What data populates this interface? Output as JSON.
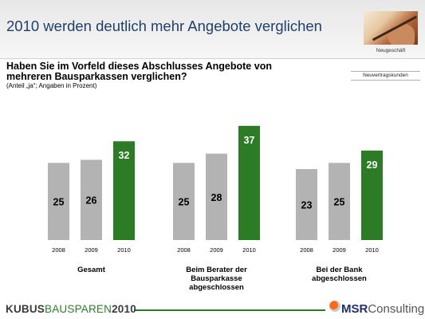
{
  "header": {
    "title": "2010 werden deutlich mehr Angebote verglichen",
    "photo_label": "Neugeschäft"
  },
  "question": "Haben Sie im Vorfeld dieses Abschlusses Angebote von\nmehreren Bausparkassen verglichen?",
  "note": "(Anteil „ja“; Angaben in Prozent)",
  "segment_label": "Neuvertragskunden",
  "footer": {
    "brand_part1": "KUBUS",
    "brand_part2": "BAUSPAREN",
    "brand_part3": "2010",
    "company_part1": "MSR",
    "company_part2": "Consulting"
  },
  "colors": {
    "bar_gray": "#b3b3b3",
    "bar_green": "#2b7c25",
    "title_blue": "#1f3f6f",
    "footer_green": "#2e7d2b",
    "logo_orange": "#ff6a1a"
  },
  "chart_data": {
    "type": "bar",
    "ylim": [
      0,
      40
    ],
    "groups": [
      {
        "label": "Gesamt",
        "categories": [
          "2008",
          "2009",
          "2010"
        ],
        "values": [
          25,
          26,
          32
        ]
      },
      {
        "label": "Beim Berater der\nBausparkasse\nabgeschlossen",
        "categories": [
          "2008",
          "2009",
          "2010"
        ],
        "values": [
          25,
          28,
          37
        ]
      },
      {
        "label": "Bei der Bank\nabgeschlossen",
        "categories": [
          "2008",
          "2009",
          "2010"
        ],
        "values": [
          23,
          25,
          29
        ]
      }
    ]
  }
}
